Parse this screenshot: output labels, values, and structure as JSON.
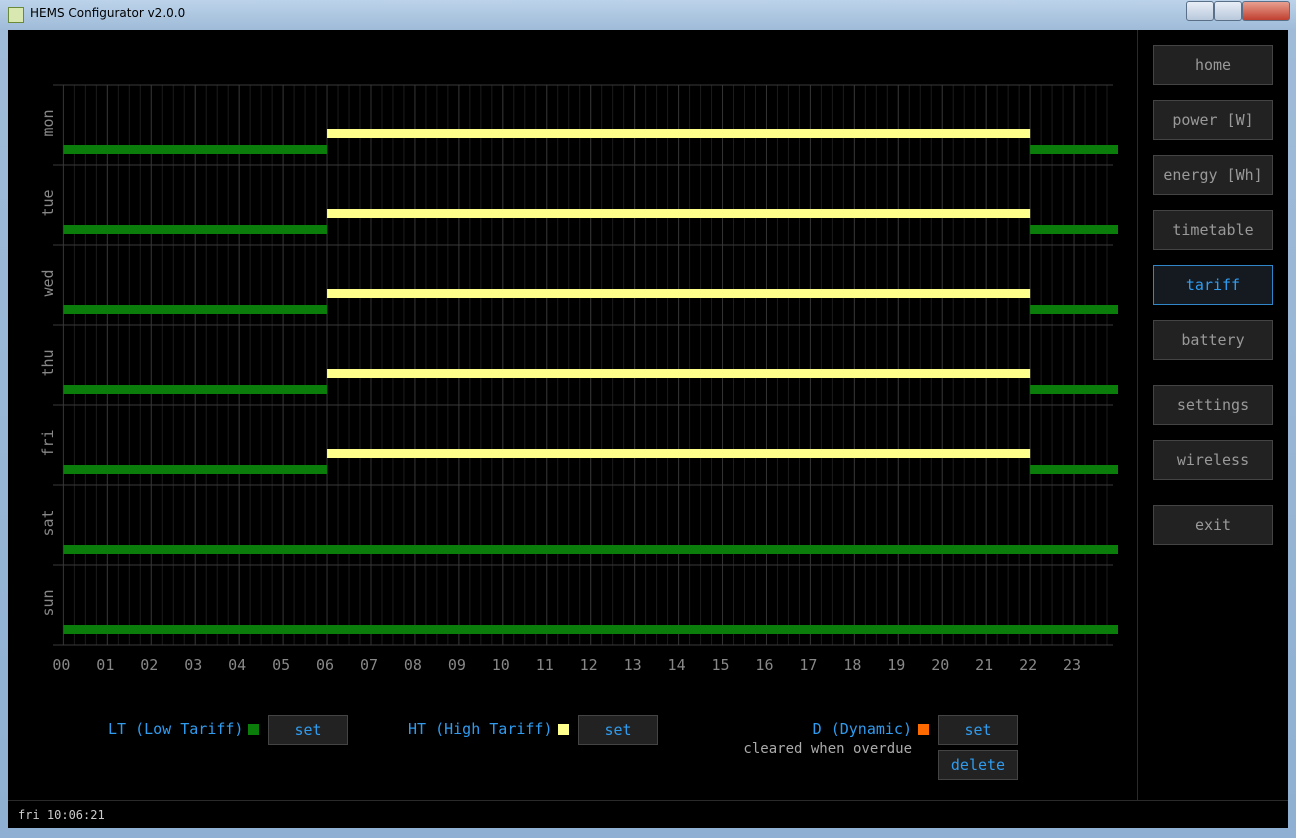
{
  "window": {
    "title": "HEMS Configurator v2.0.0"
  },
  "nav": {
    "items": [
      "home",
      "power [W]",
      "energy [Wh]",
      "timetable",
      "tariff",
      "battery",
      "settings",
      "wireless",
      "exit"
    ],
    "active": 4
  },
  "timetable": {
    "days": [
      "mon",
      "tue",
      "wed",
      "thu",
      "fri",
      "sat",
      "sun"
    ],
    "xlim": [
      0,
      24
    ],
    "xticks": [
      {
        "value": 0,
        "label": "00"
      },
      {
        "value": 1,
        "label": "01"
      },
      {
        "value": 2,
        "label": "02"
      },
      {
        "value": 3,
        "label": "03"
      },
      {
        "value": 4,
        "label": "04"
      },
      {
        "value": 5,
        "label": "05"
      },
      {
        "value": 6,
        "label": "06"
      },
      {
        "value": 7,
        "label": "07"
      },
      {
        "value": 8,
        "label": "08"
      },
      {
        "value": 9,
        "label": "09"
      },
      {
        "value": 10,
        "label": "10"
      },
      {
        "value": 11,
        "label": "11"
      },
      {
        "value": 12,
        "label": "12"
      },
      {
        "value": 13,
        "label": "13"
      },
      {
        "value": 14,
        "label": "14"
      },
      {
        "value": 15,
        "label": "15"
      },
      {
        "value": 16,
        "label": "16"
      },
      {
        "value": 17,
        "label": "17"
      },
      {
        "value": 18,
        "label": "18"
      },
      {
        "value": 19,
        "label": "19"
      },
      {
        "value": 20,
        "label": "20"
      },
      {
        "value": 21,
        "label": "21"
      },
      {
        "value": 22,
        "label": "22"
      },
      {
        "value": 23,
        "label": "23"
      }
    ],
    "rows": [
      [
        {
          "tariff": 0,
          "start": 0,
          "end": 6
        },
        {
          "tariff": 1,
          "start": 6,
          "end": 22
        },
        {
          "tariff": 0,
          "start": 22,
          "end": 24
        }
      ],
      [
        {
          "tariff": 0,
          "start": 0,
          "end": 6
        },
        {
          "tariff": 1,
          "start": 6,
          "end": 22
        },
        {
          "tariff": 0,
          "start": 22,
          "end": 24
        }
      ],
      [
        {
          "tariff": 0,
          "start": 0,
          "end": 6
        },
        {
          "tariff": 1,
          "start": 6,
          "end": 22
        },
        {
          "tariff": 0,
          "start": 22,
          "end": 24
        }
      ],
      [
        {
          "tariff": 0,
          "start": 0,
          "end": 6
        },
        {
          "tariff": 1,
          "start": 6,
          "end": 22
        },
        {
          "tariff": 0,
          "start": 22,
          "end": 24
        }
      ],
      [
        {
          "tariff": 0,
          "start": 0,
          "end": 6
        },
        {
          "tariff": 1,
          "start": 6,
          "end": 22
        },
        {
          "tariff": 0,
          "start": 22,
          "end": 24
        }
      ],
      [
        {
          "tariff": 0,
          "start": 0,
          "end": 24
        }
      ],
      [
        {
          "tariff": 0,
          "start": 0,
          "end": 24
        }
      ]
    ]
  },
  "legend": {
    "items": [
      {
        "label": "LT (Low Tariff)",
        "color": "#0b7d0b",
        "button": "set"
      },
      {
        "label": "HT (High Tariff)",
        "color": "#ffff8c",
        "button": "set"
      },
      {
        "label": "D (Dynamic)",
        "color": "#ff6a00",
        "button": "set",
        "note": "cleared when overdue",
        "button2": "delete"
      }
    ]
  },
  "status": "fri 10:06:21"
}
